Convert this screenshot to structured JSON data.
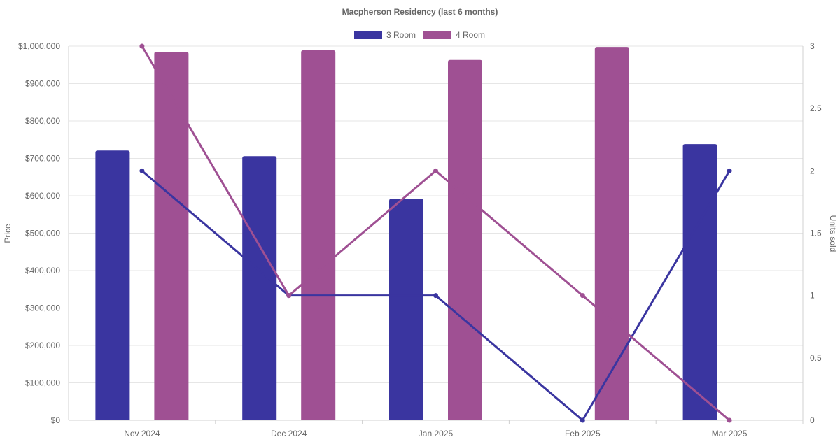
{
  "chart_data": {
    "type": "bar",
    "title": "Macpherson Residency (last 6 months)",
    "categories": [
      "Nov 2024",
      "Dec 2024",
      "Jan 2025",
      "Feb 2025",
      "Mar 2025"
    ],
    "ylabel": "Price",
    "y2label": "Units sold",
    "ylim": [
      0,
      1000000
    ],
    "y2lim": [
      0,
      3
    ],
    "yticks": [
      "$0",
      "$100,000",
      "$200,000",
      "$300,000",
      "$400,000",
      "$500,000",
      "$600,000",
      "$700,000",
      "$800,000",
      "$900,000",
      "$1,000,000"
    ],
    "y2ticks": [
      "0",
      "0.5",
      "1",
      "1.5",
      "2",
      "2.5",
      "3"
    ],
    "legend_position": "top",
    "grid": true,
    "series": [
      {
        "name": "3 Room",
        "color": "#3a35a0",
        "price": [
          721000,
          706000,
          592000,
          null,
          738000
        ],
        "units": [
          2,
          1,
          1,
          0,
          2
        ]
      },
      {
        "name": "4 Room",
        "color": "#9f5093",
        "price": [
          985000,
          989000,
          963000,
          998000,
          null
        ],
        "units": [
          3,
          1,
          2,
          1,
          0
        ]
      }
    ]
  }
}
